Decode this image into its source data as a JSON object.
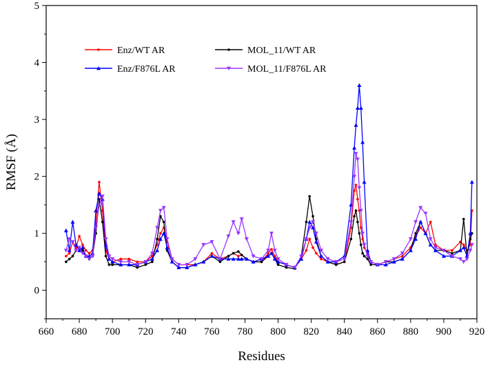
{
  "chart_data": {
    "type": "line",
    "title": "",
    "xlabel": "Residues",
    "ylabel": "RMSF (Å)",
    "xlim": [
      660,
      920
    ],
    "ylim": [
      -0.5,
      5
    ],
    "xticks": [
      660,
      680,
      700,
      720,
      740,
      760,
      780,
      800,
      820,
      840,
      860,
      880,
      900,
      920
    ],
    "yticks": [
      0,
      1,
      2,
      3,
      4,
      5
    ],
    "grid": false,
    "legend_position": "top-left",
    "x": [
      672,
      674,
      676,
      678,
      680,
      682,
      684,
      686,
      688,
      690,
      692,
      694,
      696,
      698,
      700,
      705,
      710,
      715,
      720,
      724,
      727,
      729,
      731,
      733,
      736,
      740,
      745,
      750,
      755,
      760,
      765,
      770,
      773,
      776,
      778,
      781,
      785,
      790,
      794,
      796,
      798,
      800,
      805,
      810,
      814,
      817,
      819,
      821,
      823,
      826,
      830,
      835,
      840,
      844,
      846,
      847,
      848,
      849,
      850,
      851,
      852,
      854,
      856,
      860,
      865,
      870,
      875,
      880,
      883,
      886,
      889,
      892,
      895,
      900,
      905,
      910,
      912,
      914,
      916,
      917
    ],
    "series": [
      {
        "name": "Enz/WT AR",
        "color": "#ff0000",
        "marker": "circle",
        "values": [
          0.6,
          0.65,
          0.85,
          0.75,
          0.95,
          0.8,
          0.7,
          0.65,
          0.7,
          1.2,
          1.9,
          1.4,
          0.7,
          0.55,
          0.5,
          0.55,
          0.55,
          0.5,
          0.5,
          0.6,
          0.8,
          1.0,
          1.1,
          0.85,
          0.55,
          0.45,
          0.45,
          0.45,
          0.5,
          0.65,
          0.55,
          0.6,
          0.65,
          0.6,
          0.62,
          0.55,
          0.5,
          0.5,
          0.65,
          0.72,
          0.6,
          0.5,
          0.45,
          0.4,
          0.55,
          0.7,
          0.9,
          0.75,
          0.65,
          0.55,
          0.5,
          0.45,
          0.5,
          1.1,
          1.75,
          1.85,
          1.6,
          1.4,
          1.1,
          0.9,
          0.75,
          0.65,
          0.5,
          0.45,
          0.5,
          0.55,
          0.6,
          0.75,
          0.95,
          1.1,
          1.0,
          1.2,
          0.8,
          0.7,
          0.7,
          0.85,
          0.8,
          0.7,
          0.8,
          1.4
        ]
      },
      {
        "name": "MOL_11/WT AR",
        "color": "#000000",
        "marker": "circle",
        "values": [
          0.5,
          0.55,
          0.6,
          0.7,
          0.75,
          0.7,
          0.6,
          0.55,
          0.6,
          1.0,
          1.6,
          1.2,
          0.6,
          0.45,
          0.45,
          0.45,
          0.45,
          0.4,
          0.45,
          0.5,
          0.9,
          1.3,
          1.2,
          0.7,
          0.5,
          0.4,
          0.4,
          0.45,
          0.5,
          0.6,
          0.5,
          0.6,
          0.65,
          0.68,
          0.62,
          0.55,
          0.5,
          0.5,
          0.6,
          0.65,
          0.55,
          0.45,
          0.4,
          0.38,
          0.6,
          1.2,
          1.65,
          1.3,
          0.9,
          0.6,
          0.5,
          0.45,
          0.5,
          0.9,
          1.3,
          1.4,
          1.2,
          1.0,
          0.8,
          0.65,
          0.6,
          0.55,
          0.45,
          0.45,
          0.5,
          0.5,
          0.55,
          0.7,
          1.0,
          1.2,
          1.0,
          0.8,
          0.7,
          0.7,
          0.65,
          0.7,
          1.25,
          0.6,
          0.9,
          1.0
        ]
      },
      {
        "name": "Enz/F876L AR",
        "color": "#0000ff",
        "marker": "triangle-up",
        "values": [
          1.05,
          0.7,
          1.2,
          0.8,
          0.7,
          0.75,
          0.6,
          0.6,
          0.65,
          1.4,
          1.7,
          1.6,
          0.8,
          0.55,
          0.5,
          0.45,
          0.45,
          0.45,
          0.5,
          0.55,
          0.7,
          0.9,
          1.0,
          0.75,
          0.5,
          0.4,
          0.4,
          0.45,
          0.5,
          0.6,
          0.55,
          0.55,
          0.55,
          0.55,
          0.55,
          0.55,
          0.5,
          0.55,
          0.6,
          0.65,
          0.55,
          0.5,
          0.45,
          0.4,
          0.55,
          0.9,
          1.2,
          1.1,
          0.85,
          0.6,
          0.5,
          0.5,
          0.6,
          1.5,
          2.5,
          2.9,
          3.2,
          3.6,
          3.2,
          2.6,
          1.9,
          0.7,
          0.5,
          0.45,
          0.45,
          0.5,
          0.55,
          0.7,
          0.9,
          1.2,
          1.0,
          0.8,
          0.7,
          0.6,
          0.6,
          0.7,
          0.75,
          0.6,
          1.0,
          1.9
        ]
      },
      {
        "name": "MOL_11/F876L AR",
        "color": "#9933ff",
        "marker": "triangle-down",
        "values": [
          0.7,
          0.9,
          0.85,
          0.7,
          0.75,
          0.65,
          0.6,
          0.55,
          0.6,
          1.1,
          1.5,
          1.65,
          0.9,
          0.6,
          0.55,
          0.5,
          0.5,
          0.45,
          0.5,
          0.65,
          1.1,
          1.4,
          1.45,
          0.9,
          0.55,
          0.45,
          0.45,
          0.55,
          0.8,
          0.85,
          0.55,
          0.95,
          1.2,
          1.0,
          1.25,
          0.9,
          0.6,
          0.55,
          0.7,
          1.0,
          0.7,
          0.55,
          0.45,
          0.4,
          0.6,
          0.9,
          1.1,
          1.2,
          1.0,
          0.7,
          0.55,
          0.5,
          0.55,
          1.2,
          2.0,
          2.4,
          2.3,
          1.8,
          1.4,
          1.0,
          0.8,
          0.6,
          0.5,
          0.45,
          0.5,
          0.55,
          0.65,
          0.9,
          1.2,
          1.45,
          1.35,
          0.9,
          0.75,
          0.7,
          0.6,
          0.55,
          0.5,
          0.55,
          0.7,
          0.8
        ]
      }
    ]
  }
}
